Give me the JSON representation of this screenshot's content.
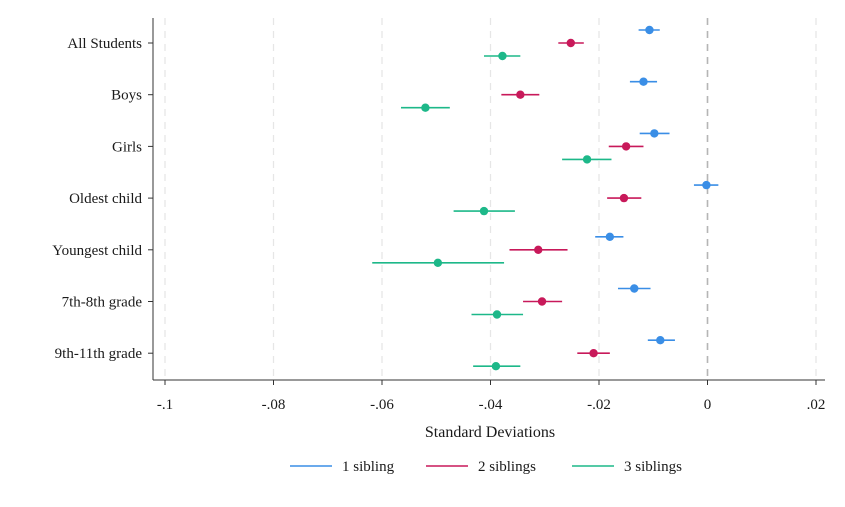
{
  "chart_data": {
    "type": "coefficient-plot",
    "title": "",
    "xlabel": "Standard Deviations",
    "ylabel": "",
    "xlim": [
      -0.1,
      0.02
    ],
    "x_ticks": [
      -0.1,
      -0.08,
      -0.06,
      -0.04,
      -0.02,
      0,
      0.02
    ],
    "x_tick_labels": [
      "-.1",
      "-.08",
      "-.06",
      "-.04",
      "-.02",
      "0",
      ".02"
    ],
    "grid": "vertical dashed",
    "reference_line": 0,
    "legend_position": "bottom",
    "categories": [
      "All Students",
      "Boys",
      "Girls",
      "Oldest child",
      "Youngest child",
      "7th-8th grade",
      "9th-11th grade"
    ],
    "series": [
      {
        "name": "1 sibling",
        "color": "#3a8ee6",
        "estimates": [
          -0.0107,
          -0.0118,
          -0.0098,
          -0.0002,
          -0.018,
          -0.0135,
          -0.0087
        ],
        "ci_low": [
          -0.0127,
          -0.0143,
          -0.0125,
          -0.0025,
          -0.0207,
          -0.0165,
          -0.011
        ],
        "ci_high": [
          -0.0088,
          -0.0093,
          -0.007,
          0.002,
          -0.0155,
          -0.0105,
          -0.006
        ]
      },
      {
        "name": "2 siblings",
        "color": "#c8195a",
        "estimates": [
          -0.0252,
          -0.0345,
          -0.015,
          -0.0154,
          -0.0312,
          -0.0305,
          -0.021
        ],
        "ci_low": [
          -0.0275,
          -0.038,
          -0.0182,
          -0.0185,
          -0.0365,
          -0.034,
          -0.024
        ],
        "ci_high": [
          -0.0228,
          -0.031,
          -0.0118,
          -0.0122,
          -0.0258,
          -0.0268,
          -0.018
        ]
      },
      {
        "name": "3 siblings",
        "color": "#1db889",
        "estimates": [
          -0.0378,
          -0.052,
          -0.0222,
          -0.0412,
          -0.0497,
          -0.0388,
          -0.039
        ],
        "ci_low": [
          -0.0412,
          -0.0565,
          -0.0268,
          -0.0468,
          -0.0618,
          -0.0435,
          -0.0432
        ],
        "ci_high": [
          -0.0345,
          -0.0475,
          -0.0177,
          -0.0355,
          -0.0375,
          -0.034,
          -0.0345
        ]
      }
    ]
  }
}
